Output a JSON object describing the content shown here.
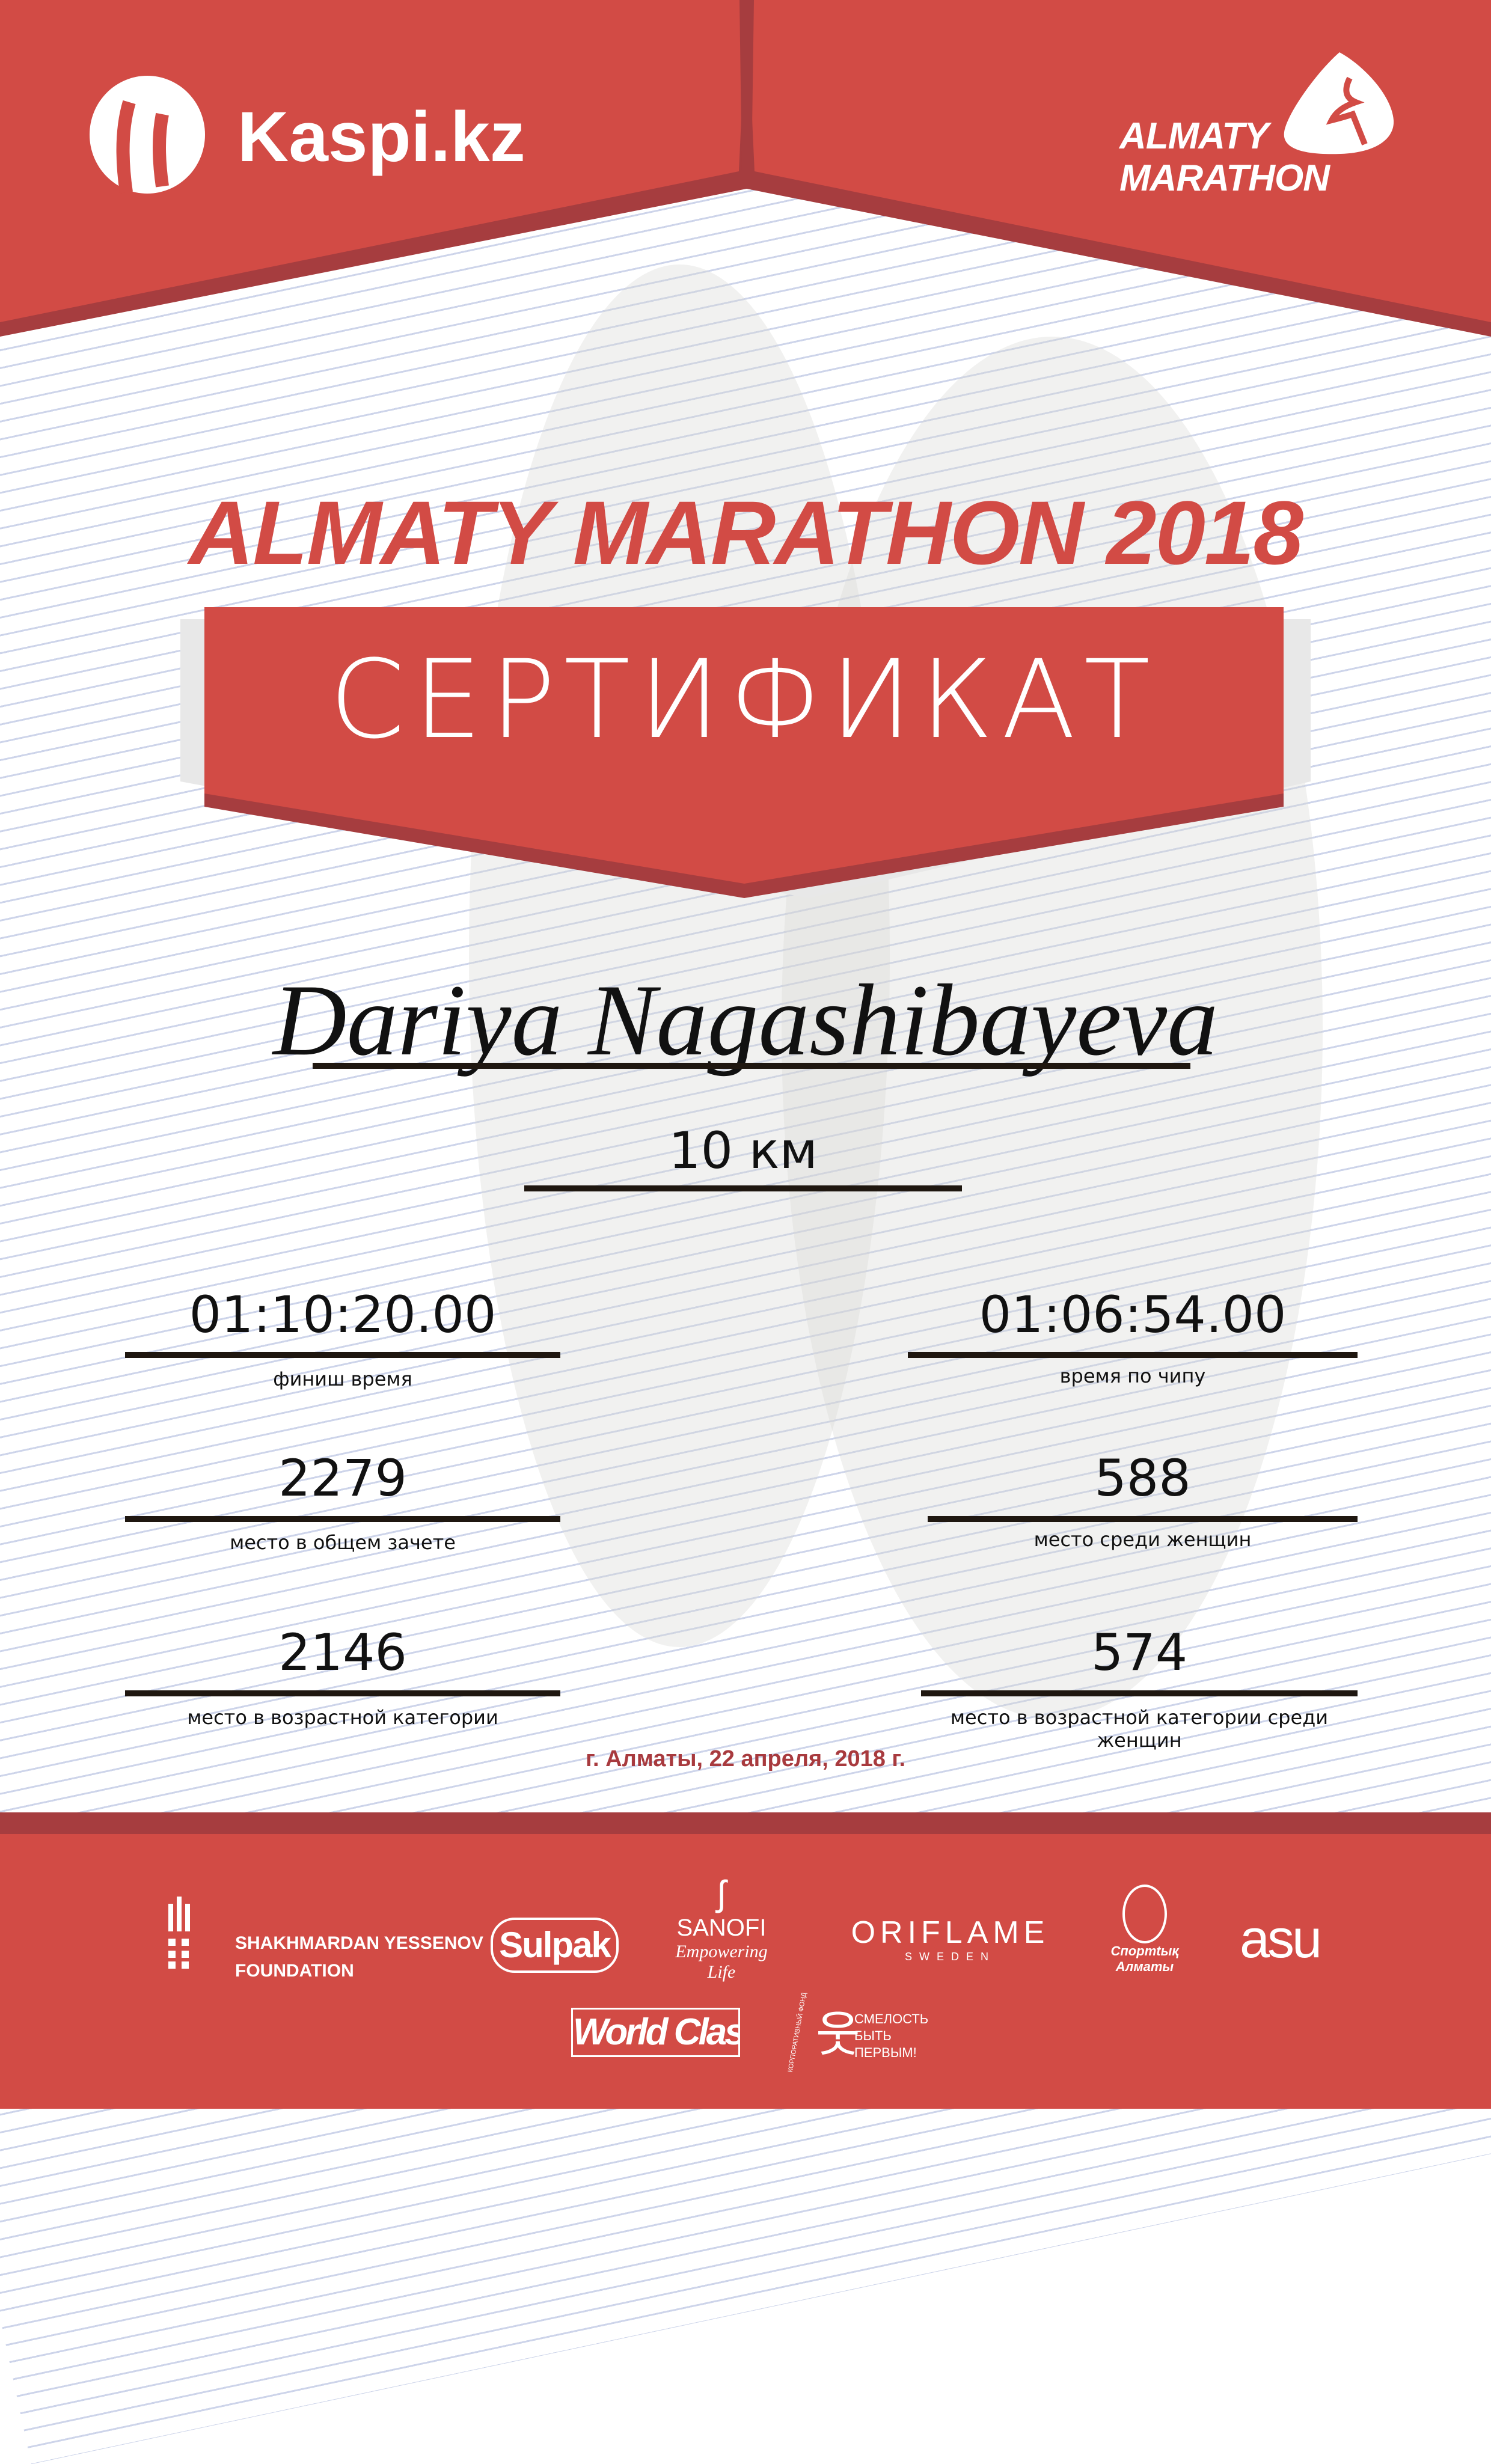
{
  "colors": {
    "brand_red": "#d24b45",
    "dark_red": "#a63d3f",
    "date_red": "#a83a3e"
  },
  "header": {
    "left_logo": "Kaspi.kz",
    "right_logo_line1": "ALMATY",
    "right_logo_line2": "MARATHON"
  },
  "event_title": "ALMATY MARATHON 2018",
  "certificate_label": "СЕРТИФИКАТ",
  "participant_name": "Dariya Nagashibayeva",
  "distance": "10 км",
  "results": {
    "finish_time": {
      "value": "01:10:20.00",
      "label": "финиш время"
    },
    "chip_time": {
      "value": "01:06:54.00",
      "label": "время по чипу"
    },
    "overall_place": {
      "value": "2279",
      "label": "место в общем зачете"
    },
    "women_place": {
      "value": "588",
      "label": "место среди женщин"
    },
    "age_place": {
      "value": "2146",
      "label": "место в возрастной категории"
    },
    "women_age_place": {
      "value": "574",
      "label": "место в возрастной категории среди женщин"
    }
  },
  "date_line": "г. Алматы, 22 апреля, 2018 г.",
  "sponsors": {
    "yessenov_line1": "SHAKHMARDAN YESSENOV",
    "yessenov_line2": "FOUNDATION",
    "sulpak": "Sulpak",
    "sanofi": "SANOFI",
    "sanofi_tag": "Empowering Life",
    "oriflame": "ORIFLAME",
    "oriflame_sub": "SWEDEN",
    "sport_almaty": "Спортtық Алматы",
    "asu": "asu",
    "world_class": "World Class",
    "smelost_line1": "СМЕЛОСТЬ",
    "smelost_line2": "БЫТЬ",
    "smelost_line3": "ПЕРВЫМ!",
    "smelost_arc": "КОРПОРАТИВНЫЙ ФОНД"
  }
}
